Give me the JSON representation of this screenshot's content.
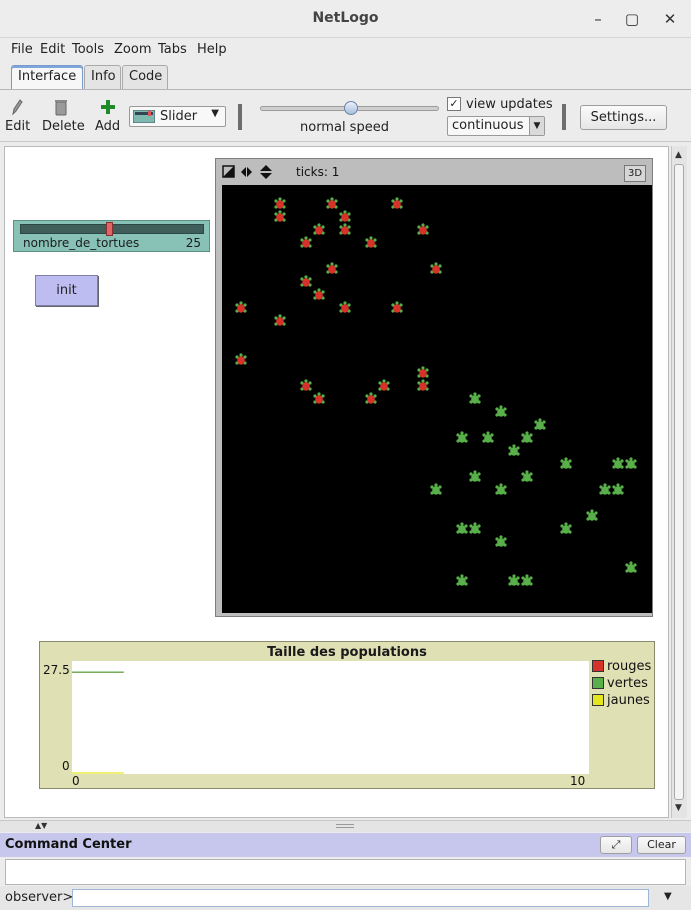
{
  "window": {
    "title": "NetLogo"
  },
  "menu": [
    "File",
    "Edit",
    "Tools",
    "Zoom",
    "Tabs",
    "Help"
  ],
  "tabs": [
    {
      "label": "Interface",
      "active": true
    },
    {
      "label": "Info",
      "active": false
    },
    {
      "label": "Code",
      "active": false
    }
  ],
  "toolbar": {
    "edit_label": "Edit",
    "delete_label": "Delete",
    "add_label": "Add",
    "widget_type": "Slider",
    "speed_label": "normal speed",
    "speed_value_percent": 50,
    "view_updates_label": "view updates",
    "view_updates_checked": true,
    "update_mode": "continuous",
    "settings_label": "Settings..."
  },
  "widgets": {
    "slider": {
      "name": "nombre_de_tortues",
      "value": "25"
    },
    "button": {
      "label": "init"
    }
  },
  "view": {
    "ticks_label": "ticks: 1",
    "three_d_label": "3D"
  },
  "turtles": {
    "colors": {
      "red": "#d73229",
      "green": "#59b04a"
    },
    "red": [
      [
        58,
        19
      ],
      [
        110,
        19
      ],
      [
        175,
        19
      ],
      [
        58,
        32
      ],
      [
        123,
        32
      ],
      [
        97,
        45
      ],
      [
        123,
        45
      ],
      [
        201,
        45
      ],
      [
        84,
        58
      ],
      [
        149,
        58
      ],
      [
        110,
        84
      ],
      [
        214,
        84
      ],
      [
        84,
        97
      ],
      [
        97,
        110
      ],
      [
        19,
        123
      ],
      [
        123,
        123
      ],
      [
        175,
        123
      ],
      [
        58,
        136
      ],
      [
        19,
        175
      ],
      [
        201,
        188
      ],
      [
        84,
        201
      ],
      [
        162,
        201
      ],
      [
        201,
        201
      ],
      [
        97,
        214
      ],
      [
        149,
        214
      ]
    ],
    "green": [
      [
        253,
        214
      ],
      [
        279,
        227
      ],
      [
        318,
        240
      ],
      [
        240,
        253
      ],
      [
        266,
        253
      ],
      [
        305,
        253
      ],
      [
        292,
        266
      ],
      [
        344,
        279
      ],
      [
        396,
        279
      ],
      [
        409,
        279
      ],
      [
        253,
        292
      ],
      [
        305,
        292
      ],
      [
        214,
        305
      ],
      [
        279,
        305
      ],
      [
        383,
        305
      ],
      [
        396,
        305
      ],
      [
        370,
        331
      ],
      [
        240,
        344
      ],
      [
        253,
        344
      ],
      [
        344,
        344
      ],
      [
        279,
        357
      ],
      [
        409,
        383
      ],
      [
        240,
        396
      ],
      [
        292,
        396
      ],
      [
        305,
        396
      ]
    ]
  },
  "plot": {
    "title": "Taille des populations",
    "chart_data": {
      "type": "line",
      "title": "Taille des populations",
      "xlim": [
        0,
        10
      ],
      "ylim": [
        0,
        27.5
      ],
      "x_tick_labels": [
        "0",
        "10"
      ],
      "y_tick_labels": [
        "27.5",
        "0"
      ],
      "series": [
        {
          "name": "rouges",
          "color": "#d73229",
          "x": [
            0,
            1
          ],
          "y": [
            25,
            25
          ]
        },
        {
          "name": "vertes",
          "color": "#59b04a",
          "x": [
            0,
            1
          ],
          "y": [
            25,
            25
          ]
        },
        {
          "name": "jaunes",
          "color": "#e6e620",
          "x": [
            0,
            1
          ],
          "y": [
            0,
            0
          ]
        }
      ],
      "legend_position": "right"
    }
  },
  "command_center": {
    "title": "Command Center",
    "clear_label": "Clear",
    "prompt": "observer>"
  }
}
